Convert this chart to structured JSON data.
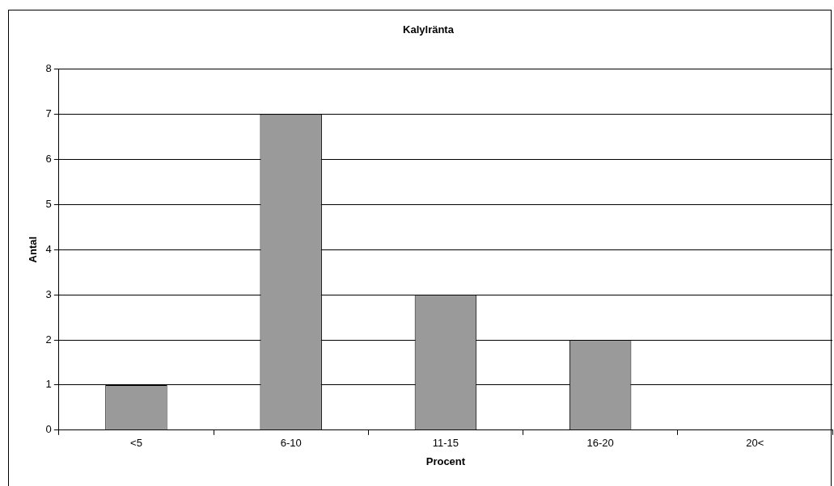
{
  "chart_data": {
    "type": "bar",
    "title": "Kalylränta",
    "xlabel": "Procent",
    "ylabel": "Antal",
    "categories": [
      "<5",
      "6-10",
      "11-15",
      "16-20",
      "20<"
    ],
    "values": [
      1,
      7,
      3,
      2,
      0
    ],
    "color": "#9a9a9a",
    "ylim": [
      0,
      8
    ],
    "yticks": [
      0,
      1,
      2,
      3,
      4,
      5,
      6,
      7,
      8
    ],
    "grid": "y",
    "legend": false
  }
}
